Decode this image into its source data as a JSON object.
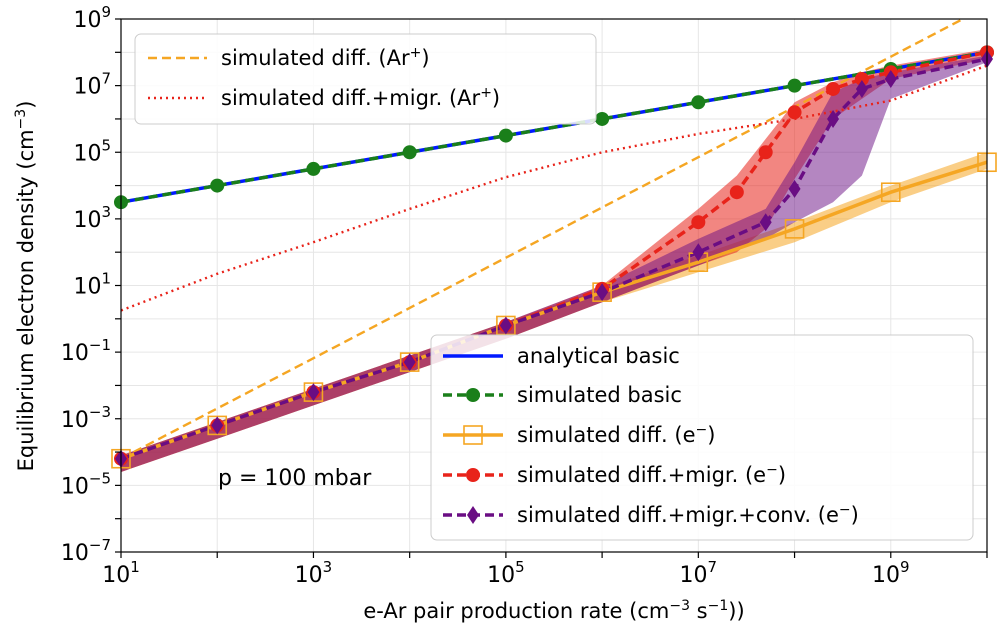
{
  "chart_data": {
    "type": "line",
    "xlabel_main": "e-Ar pair production rate (cm",
    "xlabel_sup1": "−3",
    "xlabel_mid": " s",
    "xlabel_sup2": "−1",
    "xlabel_end": "))",
    "ylabel_main": "Equilibrium electron density (cm",
    "ylabel_sup": "−3",
    "ylabel_end": ")",
    "xscale": "log",
    "yscale": "log",
    "xlim_exp": [
      1,
      10
    ],
    "ylim_exp": [
      -7,
      9
    ],
    "xticks": [
      {
        "base": "10",
        "exp": "1",
        "v": 1
      },
      {
        "base": "10",
        "exp": "3",
        "v": 3
      },
      {
        "base": "10",
        "exp": "5",
        "v": 5
      },
      {
        "base": "10",
        "exp": "7",
        "v": 7
      },
      {
        "base": "10",
        "exp": "9",
        "v": 9
      }
    ],
    "yticks": [
      {
        "base": "10",
        "exp": "9",
        "v": 9
      },
      {
        "base": "10",
        "exp": "7",
        "v": 7
      },
      {
        "base": "10",
        "exp": "5",
        "v": 5
      },
      {
        "base": "10",
        "exp": "3",
        "v": 3
      },
      {
        "base": "10",
        "exp": "1",
        "v": 1
      },
      {
        "base": "10",
        "exp": "−1",
        "v": -1
      },
      {
        "base": "10",
        "exp": "−3",
        "v": -3
      },
      {
        "base": "10",
        "exp": "−5",
        "v": -5
      },
      {
        "base": "10",
        "exp": "−7",
        "v": -7
      }
    ],
    "grid": true,
    "annotation": "p =  100 mbar",
    "legend_top": [
      {
        "label": "simulated diff. (Ar",
        "sup": "+",
        "end": ")",
        "color": "#f5a623",
        "style": "dashed"
      },
      {
        "label": "simulated diff.+migr. (Ar",
        "sup": "+",
        "end": ")",
        "color": "#e8231a",
        "style": "dotted"
      }
    ],
    "legend_bottom": [
      {
        "label": "analytical basic",
        "color": "#0019ff",
        "style": "solid",
        "marker": "none"
      },
      {
        "label": "simulated basic",
        "color": "#1a7f1a",
        "style": "dashed",
        "marker": "circle"
      },
      {
        "label": "simulated diff. (e",
        "sup": "−",
        "end": ")",
        "color": "#f5a623",
        "style": "solid",
        "marker": "square-open"
      },
      {
        "label": "simulated diff.+migr. (e",
        "sup": "−",
        "end": ")",
        "color": "#e8231a",
        "style": "dashed",
        "marker": "circle"
      },
      {
        "label": "simulated diff.+migr.+conv. (e",
        "sup": "−",
        "end": ")",
        "color": "#6a0d83",
        "style": "dashed",
        "marker": "diamond"
      }
    ],
    "series": [
      {
        "name": "analytical basic",
        "color": "#0019ff",
        "x_exp": [
          1,
          10
        ],
        "y_exp": [
          3.5,
          8
        ]
      },
      {
        "name": "simulated basic",
        "color": "#1a7f1a",
        "x_exp": [
          1,
          2,
          3,
          4,
          5,
          6,
          7,
          8,
          9,
          10
        ],
        "y_exp": [
          3.5,
          4,
          4.5,
          5,
          5.5,
          6,
          6.5,
          7,
          7.5,
          8
        ]
      },
      {
        "name": "simulated diff. (Ar+)",
        "color": "#f5a623",
        "x_exp": [
          1,
          9.75
        ],
        "y_exp": [
          -4.2,
          9
        ]
      },
      {
        "name": "simulated diff.+migr. (Ar+)",
        "color": "#e8231a",
        "x_exp": [
          1,
          2,
          3,
          4,
          5,
          6,
          7,
          8,
          9,
          10
        ],
        "y_exp": [
          0.25,
          1.35,
          2.3,
          3.3,
          4.25,
          5.0,
          5.55,
          6.0,
          6.55,
          7.6
        ]
      },
      {
        "name": "simulated diff. (e-)",
        "color": "#f5a623",
        "x_exp": [
          1,
          2,
          3,
          4,
          5,
          6,
          7,
          8,
          9,
          10
        ],
        "y_exp": [
          -4.2,
          -3.2,
          -2.2,
          -1.3,
          -0.2,
          0.8,
          1.7,
          2.7,
          3.8,
          4.7
        ],
        "band_lo": [
          -4.6,
          -3.6,
          -2.6,
          -1.6,
          -0.6,
          0.5,
          1.4,
          2.3,
          3.5,
          4.5
        ],
        "band_hi": [
          -4.1,
          -3.1,
          -2.1,
          -1.1,
          -0.1,
          0.9,
          1.9,
          2.9,
          4.0,
          5.0
        ]
      },
      {
        "name": "simulated diff.+migr. (e-)",
        "color": "#e8231a",
        "x_exp": [
          1,
          2,
          3,
          4,
          5,
          6,
          7,
          7.4,
          7.7,
          8,
          8.4,
          8.7,
          9,
          10
        ],
        "y_exp": [
          -4.2,
          -3.2,
          -2.2,
          -1.3,
          -0.2,
          0.9,
          2.9,
          3.8,
          5.0,
          6.2,
          6.9,
          7.2,
          7.4,
          8.0
        ],
        "band_lo": [
          -4.6,
          -3.6,
          -2.6,
          -1.6,
          -0.6,
          0.5,
          1.6,
          2.0,
          2.7,
          4.2,
          6.0,
          6.6,
          7.2,
          7.8
        ],
        "band_hi": [
          -4.1,
          -3.1,
          -2.1,
          -1.1,
          -0.1,
          1.0,
          3.3,
          4.3,
          5.4,
          6.5,
          7.1,
          7.4,
          7.6,
          8.1
        ]
      },
      {
        "name": "simulated diff.+migr.+conv. (e-)",
        "color": "#6a0d83",
        "x_exp": [
          1,
          2,
          3,
          4,
          5,
          6,
          7,
          7.7,
          8,
          8.4,
          8.7,
          9,
          10
        ],
        "y_exp": [
          -4.2,
          -3.2,
          -2.2,
          -1.3,
          -0.2,
          0.8,
          2.0,
          2.9,
          3.9,
          6.0,
          6.9,
          7.2,
          7.8
        ],
        "band_lo": [
          -4.6,
          -3.6,
          -2.6,
          -1.6,
          -0.6,
          0.5,
          1.6,
          2.4,
          2.9,
          3.5,
          4.3,
          6.6,
          7.7
        ],
        "band_hi": [
          -4.1,
          -3.1,
          -2.1,
          -1.1,
          -0.1,
          1.0,
          2.4,
          3.3,
          4.7,
          6.8,
          7.2,
          7.4,
          7.9
        ]
      }
    ]
  }
}
